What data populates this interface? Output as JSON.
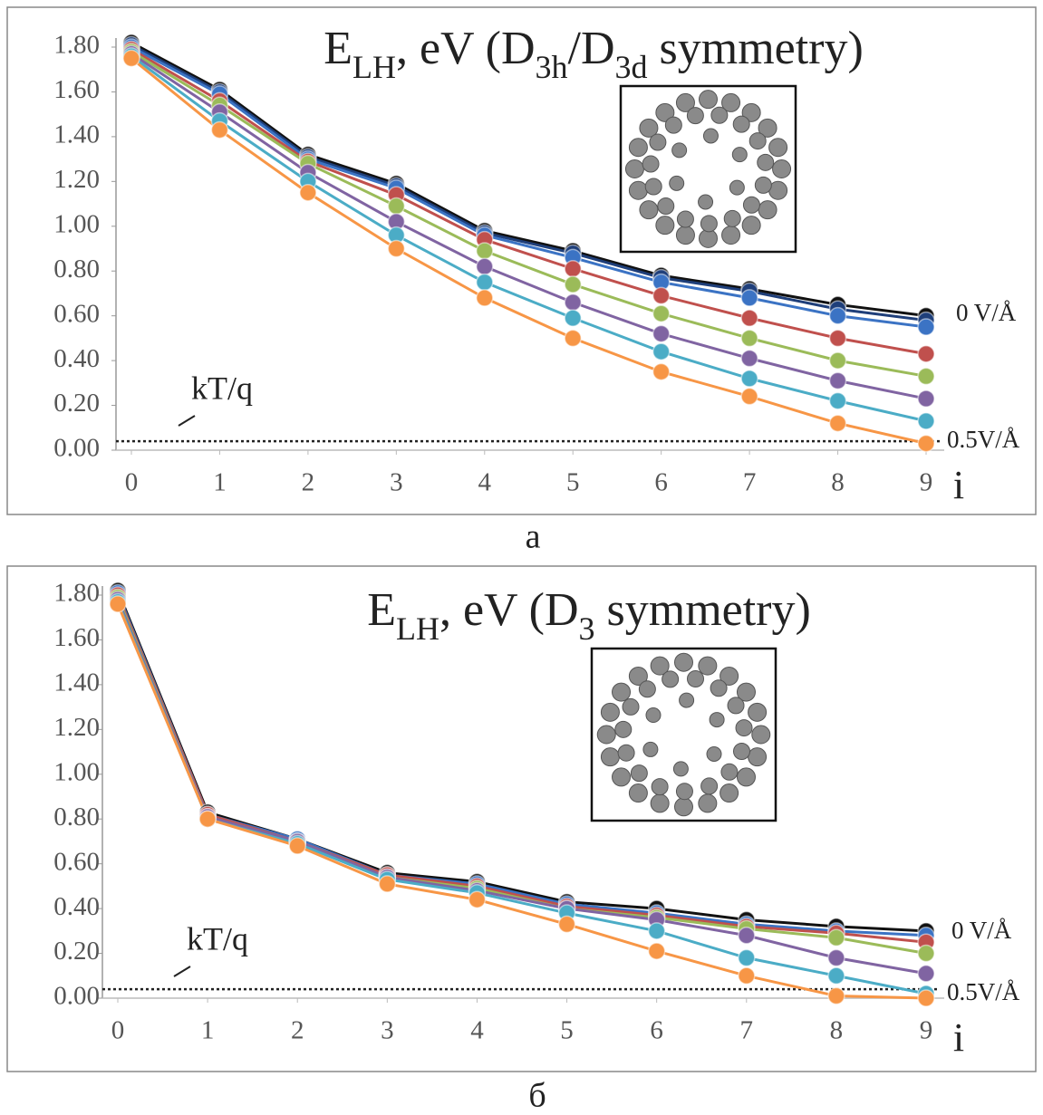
{
  "chart_data": [
    {
      "type": "line",
      "title": [
        "E",
        "LH",
        ", eV (D",
        "3h",
        "/D",
        "3d",
        " symmetry)"
      ],
      "x": [
        0,
        1,
        2,
        3,
        4,
        5,
        6,
        7,
        8,
        9
      ],
      "xlim": [
        0,
        9
      ],
      "xticks": [
        0,
        1,
        2,
        3,
        4,
        5,
        6,
        7,
        8,
        9
      ],
      "xlabel": "i",
      "ylim": [
        0,
        1.8
      ],
      "yticks": [
        {
          "value": 0,
          "label": "0.00"
        },
        {
          "value": 0.2,
          "label": "0.20"
        },
        {
          "value": 0.4,
          "label": "0.40"
        },
        {
          "value": 0.6,
          "label": "0.60"
        },
        {
          "value": 0.8,
          "label": "0.80"
        },
        {
          "value": 1.0,
          "label": "1.00"
        },
        {
          "value": 1.2,
          "label": "1.20"
        },
        {
          "value": 1.4,
          "label": "1.40"
        },
        {
          "value": 1.6,
          "label": "1.60"
        },
        {
          "value": 1.8,
          "label": "1.80"
        }
      ],
      "reference_line": 0.04,
      "annotations": {
        "reference": "kT/q",
        "top_field": "0 V/Å",
        "bottom_field": "0.5V/Å"
      },
      "caption": "а",
      "series": [
        {
          "color": "#111111",
          "values": [
            1.82,
            1.61,
            1.32,
            1.19,
            0.98,
            0.89,
            0.78,
            0.72,
            0.65,
            0.6
          ]
        },
        {
          "color": "#1f3f7a",
          "values": [
            1.81,
            1.6,
            1.31,
            1.18,
            0.97,
            0.88,
            0.77,
            0.71,
            0.63,
            0.58
          ]
        },
        {
          "color": "#3b73c4",
          "values": [
            1.8,
            1.59,
            1.3,
            1.17,
            0.96,
            0.86,
            0.75,
            0.68,
            0.6,
            0.55
          ]
        },
        {
          "color": "#c0504d",
          "values": [
            1.79,
            1.56,
            1.29,
            1.14,
            0.94,
            0.81,
            0.69,
            0.59,
            0.5,
            0.43
          ]
        },
        {
          "color": "#9bbb59",
          "values": [
            1.78,
            1.54,
            1.28,
            1.09,
            0.89,
            0.74,
            0.61,
            0.5,
            0.4,
            0.33
          ]
        },
        {
          "color": "#8064a2",
          "values": [
            1.77,
            1.51,
            1.24,
            1.02,
            0.82,
            0.66,
            0.52,
            0.41,
            0.31,
            0.23
          ]
        },
        {
          "color": "#4bacc6",
          "values": [
            1.76,
            1.47,
            1.2,
            0.96,
            0.75,
            0.59,
            0.44,
            0.32,
            0.22,
            0.13
          ]
        },
        {
          "color": "#f79646",
          "values": [
            1.75,
            1.43,
            1.15,
            0.9,
            0.68,
            0.5,
            0.35,
            0.24,
            0.12,
            0.03
          ]
        }
      ]
    },
    {
      "type": "line",
      "title": [
        "E",
        "LH",
        ", eV (D",
        "3",
        " symmetry)"
      ],
      "x": [
        0,
        1,
        2,
        3,
        4,
        5,
        6,
        7,
        8,
        9
      ],
      "xlim": [
        0,
        9
      ],
      "xticks": [
        0,
        1,
        2,
        3,
        4,
        5,
        6,
        7,
        8,
        9
      ],
      "xlabel": "i",
      "ylim": [
        0,
        1.8
      ],
      "yticks": [
        {
          "value": 0,
          "label": "0.00"
        },
        {
          "value": 0.2,
          "label": "0.20"
        },
        {
          "value": 0.4,
          "label": "0.40"
        },
        {
          "value": 0.6,
          "label": "0.60"
        },
        {
          "value": 0.8,
          "label": "0.80"
        },
        {
          "value": 1.0,
          "label": "1.00"
        },
        {
          "value": 1.2,
          "label": "1.20"
        },
        {
          "value": 1.4,
          "label": "1.40"
        },
        {
          "value": 1.6,
          "label": "1.60"
        },
        {
          "value": 1.8,
          "label": "1.80"
        }
      ],
      "reference_line": 0.04,
      "annotations": {
        "reference": "kT/q",
        "top_field": "0 V/Å",
        "bottom_field": "0.5V/Å"
      },
      "caption": "б",
      "series": [
        {
          "color": "#111111",
          "values": [
            1.82,
            0.83,
            0.71,
            0.56,
            0.52,
            0.43,
            0.4,
            0.35,
            0.32,
            0.3
          ]
        },
        {
          "color": "#3b73c4",
          "values": [
            1.81,
            0.82,
            0.71,
            0.55,
            0.51,
            0.42,
            0.38,
            0.33,
            0.3,
            0.28
          ]
        },
        {
          "color": "#c0504d",
          "values": [
            1.8,
            0.82,
            0.7,
            0.55,
            0.5,
            0.41,
            0.37,
            0.32,
            0.29,
            0.25
          ]
        },
        {
          "color": "#9bbb59",
          "values": [
            1.79,
            0.81,
            0.7,
            0.54,
            0.49,
            0.4,
            0.36,
            0.31,
            0.27,
            0.2
          ]
        },
        {
          "color": "#8064a2",
          "values": [
            1.78,
            0.81,
            0.7,
            0.54,
            0.48,
            0.4,
            0.35,
            0.28,
            0.18,
            0.11
          ]
        },
        {
          "color": "#4bacc6",
          "values": [
            1.77,
            0.8,
            0.69,
            0.53,
            0.47,
            0.38,
            0.3,
            0.18,
            0.1,
            0.02
          ]
        },
        {
          "color": "#f79646",
          "values": [
            1.76,
            0.8,
            0.68,
            0.51,
            0.44,
            0.33,
            0.21,
            0.1,
            0.01,
            0.0
          ]
        }
      ]
    }
  ]
}
